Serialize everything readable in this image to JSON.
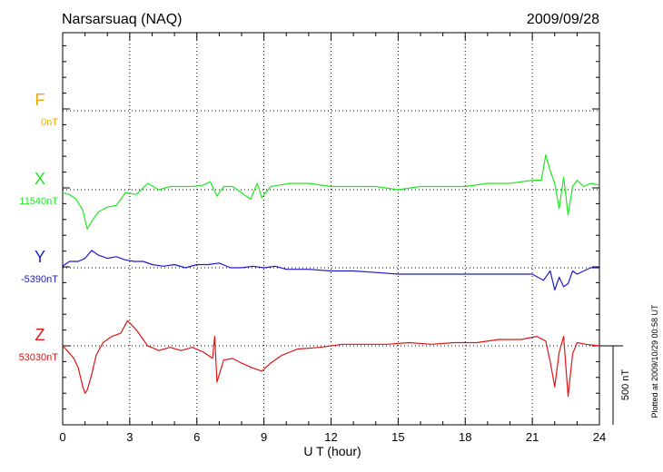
{
  "chart_data": {
    "type": "line",
    "title": "Narsarsuaq (NAQ)",
    "date": "2009/09/28",
    "xlabel": "U T (hour)",
    "xlim": [
      0,
      24
    ],
    "x_ticks": [
      "0",
      "3",
      "6",
      "9",
      "12",
      "15",
      "18",
      "21",
      "24"
    ],
    "scale_label": "500 nT",
    "scale_nT": 500,
    "plotted_note": "Plotted at 2009/10/29 00:58 UT",
    "series": [
      {
        "name": "F",
        "baseline_label": "0nT",
        "color": "#f0a800",
        "x": [],
        "values": []
      },
      {
        "name": "X",
        "baseline_label": "11540nT",
        "color": "#22e622",
        "x": [
          0,
          0.3,
          0.6,
          0.9,
          1.1,
          1.3,
          1.6,
          2.0,
          2.4,
          2.8,
          3.3,
          3.8,
          4.3,
          4.8,
          5.3,
          5.8,
          6.3,
          6.6,
          6.9,
          7.2,
          7.6,
          8.0,
          8.4,
          8.7,
          8.9,
          9.3,
          9.7,
          10.2,
          11.0,
          12.0,
          13.0,
          14.0,
          15.0,
          16.0,
          17.0,
          18.0,
          19.0,
          20.0,
          21.0,
          21.4,
          21.6,
          21.8,
          22.0,
          22.2,
          22.4,
          22.6,
          22.8,
          23.0,
          23.3,
          23.6,
          24.0
        ],
        "values": [
          -20,
          -30,
          -60,
          -130,
          -250,
          -200,
          -140,
          -110,
          -100,
          -20,
          -30,
          40,
          0,
          20,
          20,
          20,
          30,
          50,
          -40,
          20,
          20,
          -20,
          -60,
          40,
          -50,
          20,
          30,
          40,
          40,
          20,
          20,
          20,
          0,
          20,
          20,
          20,
          40,
          40,
          60,
          60,
          220,
          120,
          40,
          -120,
          80,
          -160,
          20,
          60,
          20,
          40,
          30
        ]
      },
      {
        "name": "Y",
        "baseline_label": "-5390nT",
        "color": "#1c1ccc",
        "x": [
          0,
          0.3,
          0.7,
          1.0,
          1.3,
          1.6,
          2.0,
          2.4,
          2.8,
          3.2,
          3.6,
          4.0,
          4.5,
          5.0,
          5.5,
          6.0,
          6.5,
          7.0,
          7.5,
          8.0,
          8.5,
          9.0,
          9.5,
          10.0,
          11.0,
          12.0,
          13.0,
          14.0,
          15.0,
          16.0,
          17.0,
          18.0,
          19.0,
          20.0,
          21.0,
          21.5,
          21.8,
          22.0,
          22.2,
          22.4,
          22.6,
          22.8,
          23.0,
          23.3,
          23.6,
          24.0
        ],
        "values": [
          10,
          40,
          40,
          60,
          110,
          80,
          60,
          70,
          50,
          40,
          40,
          20,
          10,
          20,
          0,
          20,
          20,
          30,
          0,
          0,
          10,
          0,
          10,
          -10,
          -10,
          -20,
          -20,
          -30,
          -40,
          -40,
          -40,
          -40,
          -40,
          -40,
          -40,
          -80,
          -20,
          -140,
          -60,
          -120,
          -100,
          -20,
          -40,
          -20,
          0,
          0
        ]
      },
      {
        "name": "Z",
        "baseline_label": "53030nT",
        "color": "#e01414",
        "x": [
          0,
          0.2,
          0.5,
          0.7,
          0.9,
          1.0,
          1.1,
          1.3,
          1.5,
          1.8,
          2.2,
          2.6,
          2.9,
          3.3,
          3.8,
          4.3,
          4.8,
          5.3,
          5.8,
          6.3,
          6.7,
          6.8,
          6.9,
          7.2,
          7.6,
          8.0,
          8.5,
          8.9,
          9.3,
          9.8,
          10.5,
          11.5,
          12.5,
          13.5,
          14.5,
          15.5,
          16.5,
          17.5,
          18.5,
          19.5,
          20.5,
          21.2,
          21.6,
          21.8,
          22.0,
          22.2,
          22.4,
          22.6,
          22.8,
          23.0,
          23.4,
          24.0
        ],
        "values": [
          0,
          -30,
          -80,
          -140,
          -260,
          -300,
          -280,
          -180,
          -60,
          20,
          60,
          80,
          160,
          100,
          0,
          -30,
          -10,
          -30,
          -10,
          -40,
          -80,
          60,
          -230,
          -90,
          -80,
          -110,
          -140,
          -160,
          -110,
          -60,
          -20,
          -10,
          10,
          10,
          10,
          20,
          10,
          20,
          20,
          40,
          40,
          60,
          30,
          -100,
          -260,
          -40,
          60,
          -320,
          -50,
          20,
          10,
          0
        ]
      }
    ]
  }
}
